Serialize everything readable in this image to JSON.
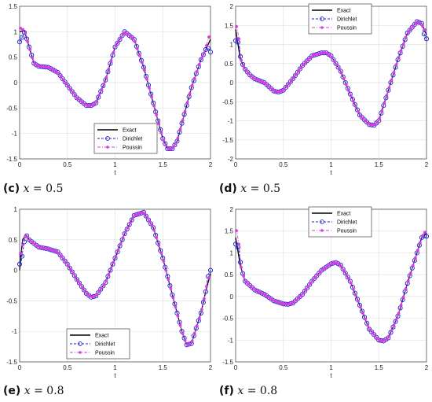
{
  "colors": {
    "exact": "#000000",
    "dirichlet": "#1f1fd0",
    "poussin": "#d63de0",
    "grid": "#e2e2e2"
  },
  "legend_labels": [
    "Exact",
    "Dirichlet",
    "Poussin"
  ],
  "captions": [
    {
      "tag": "(c)",
      "var": "x",
      "rest": " = 0.5"
    },
    {
      "tag": "(d)",
      "var": "x",
      "rest": " = 0.5"
    },
    {
      "tag": "(e)",
      "var": "x",
      "rest": " = 0.8"
    },
    {
      "tag": "(f)",
      "var": "x",
      "rest": " = 0.8"
    }
  ],
  "chart_data": [
    {
      "type": "line",
      "xlabel": "t",
      "xlim": [
        0,
        2
      ],
      "ylim": [
        -1.5,
        1.5
      ],
      "xticks": [
        "0",
        "0.5",
        "1",
        "1.5",
        "2"
      ],
      "yticks": [
        "-1.5",
        "-1",
        "-0.5",
        "0",
        "0.5",
        "1",
        "1.5"
      ],
      "grid": true,
      "legend_position": "bottom-right",
      "x": [
        0,
        0.05,
        0.1,
        0.15,
        0.2,
        0.3,
        0.4,
        0.5,
        0.6,
        0.7,
        0.75,
        0.8,
        0.9,
        1.0,
        1.1,
        1.2,
        1.3,
        1.4,
        1.5,
        1.55,
        1.6,
        1.65,
        1.7,
        1.8,
        1.9,
        1.95,
        2.0
      ],
      "y": [
        1.0,
        1.02,
        0.7,
        0.38,
        0.32,
        0.3,
        0.2,
        -0.05,
        -0.3,
        -0.45,
        -0.45,
        -0.4,
        0.05,
        0.7,
        1.0,
        0.85,
        0.3,
        -0.4,
        -1.1,
        -1.3,
        -1.3,
        -1.15,
        -0.8,
        -0.1,
        0.45,
        0.65,
        0.85
      ],
      "series": [
        {
          "name": "Exact"
        },
        {
          "name": "Dirichlet",
          "start": 0.8,
          "end": 0.6
        },
        {
          "name": "Poussin",
          "start": 1.08,
          "end": 0.95
        }
      ]
    },
    {
      "type": "line",
      "xlabel": "t",
      "xlim": [
        0,
        2
      ],
      "ylim": [
        -2,
        2
      ],
      "xticks": [
        "0",
        "0.5",
        "1",
        "1.5",
        "2"
      ],
      "yticks": [
        "-2",
        "-1.5",
        "-1",
        "-0.5",
        "0",
        "0.5",
        "1",
        "1.5",
        "2"
      ],
      "grid": true,
      "legend_position": "top-right",
      "x": [
        0,
        0.05,
        0.1,
        0.15,
        0.2,
        0.3,
        0.4,
        0.45,
        0.5,
        0.6,
        0.7,
        0.8,
        0.9,
        0.95,
        1.0,
        1.1,
        1.2,
        1.3,
        1.4,
        1.45,
        1.5,
        1.6,
        1.7,
        1.8,
        1.9,
        1.95,
        2.0
      ],
      "y": [
        1.4,
        0.6,
        0.35,
        0.2,
        0.1,
        0.0,
        -0.22,
        -0.25,
        -0.2,
        0.1,
        0.45,
        0.7,
        0.78,
        0.78,
        0.7,
        0.3,
        -0.3,
        -0.85,
        -1.1,
        -1.12,
        -1.0,
        -0.2,
        0.6,
        1.3,
        1.6,
        1.55,
        1.25
      ],
      "series": [
        {
          "name": "Exact"
        },
        {
          "name": "Dirichlet",
          "start": 1.1,
          "end": 1.15
        },
        {
          "name": "Poussin",
          "start": 1.5,
          "end": 1.4
        }
      ]
    },
    {
      "type": "line",
      "xlabel": "t",
      "xlim": [
        0,
        2
      ],
      "ylim": [
        -1.5,
        1
      ],
      "xticks": [
        "0",
        "0.5",
        "1",
        "1.5",
        "2"
      ],
      "yticks": [
        "-1.5",
        "-1",
        "-0.5",
        "0",
        "0.5",
        "1"
      ],
      "grid": true,
      "legend_position": "bottom-left",
      "x": [
        0,
        0.03,
        0.07,
        0.1,
        0.2,
        0.3,
        0.4,
        0.5,
        0.6,
        0.7,
        0.75,
        0.8,
        0.9,
        1.0,
        1.1,
        1.2,
        1.3,
        1.4,
        1.5,
        1.6,
        1.7,
        1.75,
        1.8,
        1.9,
        1.95,
        2.0
      ],
      "y": [
        0.0,
        0.5,
        0.58,
        0.5,
        0.38,
        0.35,
        0.3,
        0.1,
        -0.15,
        -0.38,
        -0.44,
        -0.42,
        -0.2,
        0.2,
        0.6,
        0.9,
        0.95,
        0.7,
        0.2,
        -0.4,
        -1.0,
        -1.22,
        -1.2,
        -0.7,
        -0.35,
        -0.05
      ],
      "series": [
        {
          "name": "Exact"
        },
        {
          "name": "Dirichlet",
          "start": 0.1,
          "end": 0.0
        },
        {
          "name": "Poussin",
          "start": 0.3,
          "end": -0.1
        }
      ]
    },
    {
      "type": "line",
      "xlabel": "t",
      "xlim": [
        0,
        2
      ],
      "ylim": [
        -1.5,
        2
      ],
      "xticks": [
        "0",
        "0.5",
        "1",
        "1.5",
        "2"
      ],
      "yticks": [
        "-1.5",
        "-1",
        "-0.5",
        "0",
        "0.5",
        "1",
        "1.5",
        "2"
      ],
      "grid": true,
      "legend_position": "top-right",
      "x": [
        0,
        0.05,
        0.1,
        0.2,
        0.3,
        0.4,
        0.5,
        0.55,
        0.6,
        0.7,
        0.8,
        0.9,
        1.0,
        1.05,
        1.1,
        1.2,
        1.3,
        1.4,
        1.5,
        1.55,
        1.6,
        1.7,
        1.8,
        1.9,
        1.95,
        2.0
      ],
      "y": [
        1.35,
        0.7,
        0.35,
        0.15,
        0.05,
        -0.1,
        -0.17,
        -0.18,
        -0.15,
        0.05,
        0.35,
        0.6,
        0.75,
        0.78,
        0.72,
        0.35,
        -0.2,
        -0.75,
        -1.0,
        -1.02,
        -0.95,
        -0.45,
        0.3,
        1.0,
        1.35,
        1.45
      ],
      "series": [
        {
          "name": "Exact"
        },
        {
          "name": "Dirichlet",
          "start": 1.2,
          "end": 1.38
        },
        {
          "name": "Poussin",
          "start": 1.55,
          "end": 1.5
        }
      ]
    }
  ]
}
